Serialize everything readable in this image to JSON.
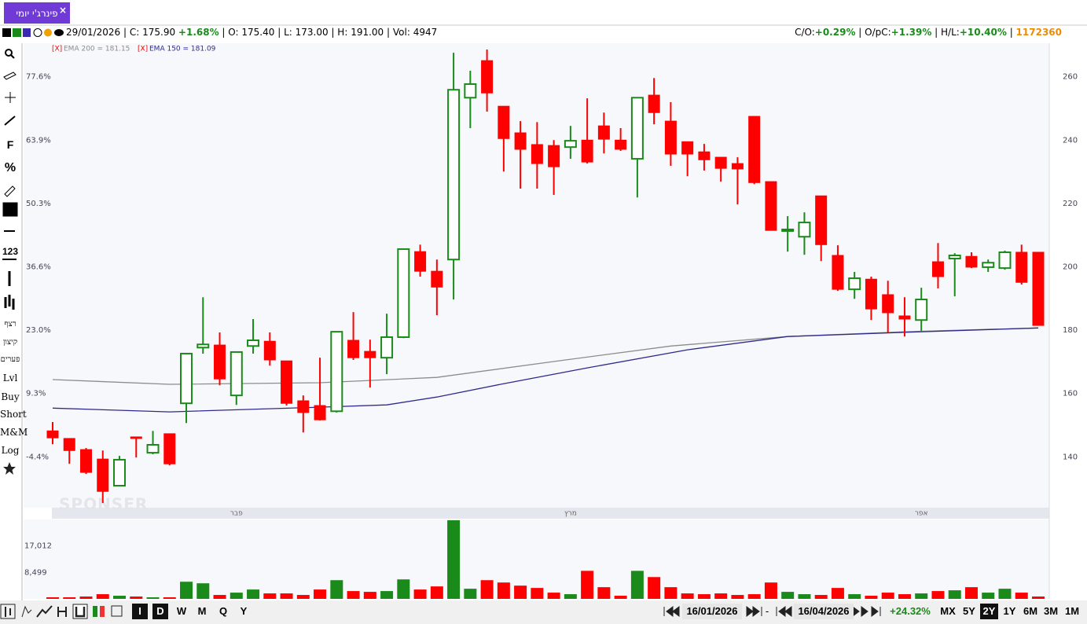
{
  "tab": "פינרג'י יומי",
  "header": {
    "date": "29/01/2026",
    "fields": [
      {
        "label": "C:",
        "value": "175.90",
        "change": "+1.68%"
      },
      {
        "label": "O:",
        "value": "175.40"
      },
      {
        "label": "L:",
        "value": "173.00"
      },
      {
        "label": "H:",
        "value": "191.00"
      },
      {
        "label": "Vol:",
        "value": "4947"
      }
    ],
    "stats": [
      {
        "label": "C/O:",
        "value": "+0.29%"
      },
      {
        "label": "O/pC:",
        "value": "+1.39%"
      },
      {
        "label": "H/L:",
        "value": "+10.40%"
      }
    ],
    "total": "1172360"
  },
  "tools": [
    "F",
    "%",
    "123",
    "רצף",
    "קיצון",
    "פערים",
    "Lvl",
    "Buy",
    "Short",
    "M&M",
    "Log"
  ],
  "periods": [
    "I",
    "D",
    "W",
    "M",
    "Q",
    "Y"
  ],
  "range": {
    "from": "16/01/2026",
    "sep": "-",
    "to": "16/04/2026",
    "change": "+24.32%"
  },
  "spans": [
    "MX",
    "5Y",
    "2Y",
    "1Y",
    "6M",
    "3M",
    "1M"
  ],
  "chart_data": {
    "type": "candlestick",
    "watermark": "SPONSER",
    "up_color": "#1a8a1a",
    "down_color": "#ff0000",
    "categories": [
      null,
      null,
      null,
      null,
      null,
      null,
      null,
      null,
      null,
      null,
      null,
      "פבר",
      null,
      null,
      null,
      null,
      null,
      null,
      null,
      null,
      null,
      null,
      null,
      null,
      null,
      null,
      null,
      null,
      null,
      null,
      null,
      "מרץ",
      null,
      null,
      null,
      null,
      null,
      null,
      null,
      null,
      null,
      null,
      null,
      null,
      null,
      null,
      null,
      null,
      null,
      null,
      null,
      null,
      "אפר",
      null,
      null,
      null,
      null,
      null,
      null,
      null
    ],
    "open": [
      148.2,
      145.8,
      142.3,
      139.3,
      130.9,
      146.3,
      141.3,
      147.3,
      156.9,
      174.5,
      175.3,
      159.4,
      175.0,
      176.5,
      170.3,
      157.7,
      156.2,
      154.4,
      176.8,
      173.3,
      171.3,
      177.8,
      204.8,
      198.6,
      202.3,
      253.4,
      265.1,
      250.7,
      242.3,
      238.6,
      238.3,
      237.8,
      240.0,
      244.5,
      240.0,
      234.1,
      254.2,
      246.0,
      239.5,
      236.3,
      234.6,
      232.6,
      247.5,
      226.9,
      211.5,
      209.5,
      222.4,
      203.6,
      192.9,
      196.1,
      191.2,
      184.5,
      183.2,
      201.6,
      202.6,
      203.3,
      199.9,
      199.6,
      204.6,
      204.6
    ],
    "high": [
      151.0,
      145.8,
      142.8,
      142.0,
      140.3,
      146.3,
      148.2,
      147.3,
      172.6,
      190.4,
      179.3,
      173.1,
      183.5,
      179.3,
      170.3,
      159.4,
      171.3,
      179.5,
      185.7,
      177.0,
      185.2,
      205.6,
      207.0,
      202.3,
      267.6,
      261.9,
      268.6,
      250.7,
      246.0,
      245.7,
      240.0,
      244.5,
      253.2,
      248.7,
      243.8,
      253.4,
      259.6,
      252.0,
      239.5,
      238.8,
      234.6,
      234.6,
      247.5,
      226.9,
      216.0,
      217.2,
      222.4,
      206.8,
      198.4,
      196.9,
      195.6,
      190.4,
      193.4,
      207.5,
      204.3,
      204.6,
      202.3,
      205.1,
      207.0,
      204.6
    ],
    "low": [
      144.0,
      137.8,
      134.6,
      125.4,
      130.9,
      139.8,
      140.8,
      137.3,
      150.7,
      172.6,
      162.6,
      156.4,
      172.6,
      168.8,
      156.2,
      147.7,
      151.5,
      154.0,
      170.6,
      161.9,
      166.1,
      177.5,
      196.9,
      184.7,
      189.7,
      243.8,
      249.0,
      230.1,
      224.7,
      224.7,
      222.7,
      234.1,
      232.6,
      235.8,
      236.6,
      221.9,
      245.0,
      231.9,
      228.6,
      230.4,
      226.9,
      219.7,
      226.1,
      211.5,
      204.8,
      203.8,
      201.8,
      192.4,
      189.9,
      183.2,
      179.3,
      178.0,
      179.8,
      193.2,
      190.7,
      199.6,
      198.4,
      199.1,
      194.4,
      181.5
    ],
    "close": [
      146.0,
      142.0,
      135.1,
      129.1,
      139.1,
      145.8,
      143.8,
      137.8,
      172.6,
      175.5,
      164.6,
      173.1,
      176.8,
      170.6,
      156.9,
      154.0,
      151.7,
      179.5,
      171.3,
      171.3,
      177.8,
      205.6,
      198.6,
      193.6,
      255.9,
      257.7,
      254.9,
      240.5,
      237.1,
      232.6,
      231.6,
      239.8,
      233.1,
      240.3,
      237.1,
      253.4,
      248.7,
      235.6,
      235.6,
      233.8,
      231.1,
      230.9,
      226.6,
      211.5,
      211.8,
      214.0,
      207.0,
      192.9,
      196.4,
      186.7,
      185.5,
      183.5,
      189.7,
      196.9,
      203.6,
      199.9,
      201.3,
      204.6,
      195.1,
      181.5
    ],
    "ylim": [
      124.2,
      270.1
    ],
    "yticks": [
      140,
      160,
      180,
      200,
      220,
      240,
      260
    ],
    "left_ticks": [
      {
        "value": 140,
        "label": "-4.4%"
      },
      {
        "value": 160,
        "label": "9.3%"
      },
      {
        "value": 180,
        "label": "23.0%"
      },
      {
        "value": 200,
        "label": "36.6%"
      },
      {
        "value": 220,
        "label": "50.3%"
      },
      {
        "value": 240,
        "label": "63.9%"
      },
      {
        "value": 260,
        "label": "77.6%"
      }
    ],
    "series": [
      {
        "name": "EMA 200 = 181.15",
        "marker": "[X]",
        "color": "#8c8c8c",
        "x": [
          0,
          7,
          16,
          23,
          30,
          37,
          44,
          51,
          59
        ],
        "values": [
          164.4,
          162.9,
          163.4,
          165.1,
          170.1,
          175.0,
          178.0,
          179.5,
          180.7
        ]
      },
      {
        "name": "EMA 150 = 181.09",
        "marker": "[X]",
        "color": "#2e2a8c",
        "x": [
          0,
          7,
          16,
          20,
          23,
          27,
          32,
          38,
          44,
          51,
          59
        ],
        "values": [
          155.4,
          154.2,
          155.7,
          156.4,
          158.9,
          163.1,
          168.1,
          173.8,
          178.0,
          179.3,
          180.7
        ]
      }
    ],
    "volume": {
      "values": [
        500,
        500,
        750,
        1500,
        1000,
        750,
        500,
        500,
        5500,
        5000,
        1250,
        2000,
        3000,
        1750,
        1750,
        1250,
        3000,
        6000,
        2500,
        2250,
        2500,
        6250,
        3000,
        4000,
        25250,
        3250,
        6000,
        5250,
        4250,
        3500,
        2000,
        1500,
        9000,
        3750,
        1000,
        9000,
        7000,
        3750,
        1750,
        1500,
        1750,
        1250,
        1500,
        5250,
        2250,
        1500,
        1250,
        3500,
        1500,
        1000,
        2000,
        1500,
        1750,
        2500,
        2750,
        3750,
        2000,
        3250,
        2000,
        750
      ],
      "ylim": [
        0,
        25500
      ],
      "yticks": [
        {
          "value": 8499,
          "label": "8,499"
        },
        {
          "value": 17012,
          "label": "17,012"
        }
      ]
    }
  }
}
